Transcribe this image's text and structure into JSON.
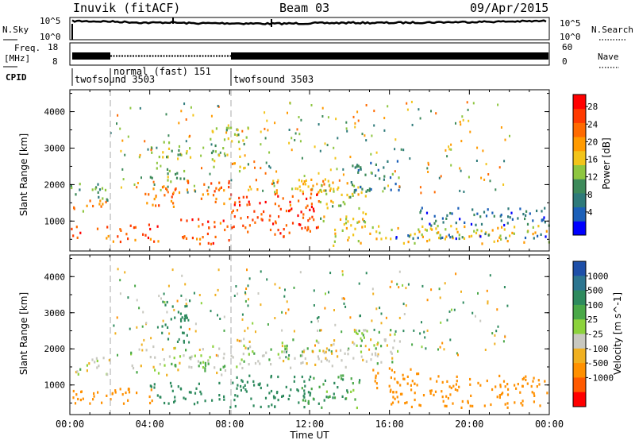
{
  "header": {
    "station": "Inuvik (fitACF)",
    "beam": "Beam 03",
    "date": "09/Apr/2015"
  },
  "nsky_panel": {
    "left_label": "N.Sky",
    "right_label": "N.Search",
    "ticks_left": [
      "10^5",
      "10^0"
    ],
    "ticks_right": [
      "10^5",
      "10^0"
    ]
  },
  "freq_panel": {
    "left_label_1": "Freq.",
    "left_label_2": "[MHz]",
    "right_label": "Nave",
    "ticks_left": [
      "18",
      "8"
    ],
    "ticks_right": [
      "60",
      "0"
    ]
  },
  "cpid": {
    "label": "CPID",
    "segments": [
      {
        "name": "twofsound 3503",
        "start_h": 0,
        "end_h": 2
      },
      {
        "name": "normal (fast) 151",
        "start_h": 2,
        "end_h": 8
      },
      {
        "name": "twofsound 3503",
        "start_h": 8,
        "end_h": 24
      }
    ]
  },
  "x_axis": {
    "label": "Time UT",
    "ticks": [
      "00:00",
      "04:00",
      "08:00",
      "12:00",
      "16:00",
      "20:00",
      "00:00"
    ],
    "range_h": [
      0,
      24
    ]
  },
  "y_axis": {
    "label": "Slant Range [km]",
    "ticks": [
      "1000",
      "2000",
      "3000",
      "4000"
    ],
    "range_km": [
      180,
      4600
    ]
  },
  "power_scale": {
    "label": "Power [dB]",
    "ticks": [
      "4",
      "8",
      "12",
      "16",
      "20",
      "24",
      "28"
    ],
    "colors": [
      "#0000ff",
      "#1b5fb8",
      "#2e7a7a",
      "#3d8a5a",
      "#8ec640",
      "#f2c41a",
      "#ff9a00",
      "#ff6a00",
      "#ff3a00",
      "#ff0000"
    ]
  },
  "velocity_scale": {
    "label": "Velocity [m s^-1]",
    "ticks": [
      "1000",
      "500",
      "100",
      "25",
      "-25",
      "-100",
      "-500",
      "-1000"
    ],
    "colors": [
      "#1e4fa8",
      "#2c7590",
      "#2e8a5e",
      "#4aa848",
      "#8cd23c",
      "#c8c8c0",
      "#f0b020",
      "#ff9000",
      "#ff5a00",
      "#ff0000"
    ]
  },
  "chart_data": [
    {
      "type": "line",
      "title": "N.Sky / N.Search",
      "x": [
        0,
        2,
        4,
        5,
        6,
        8,
        10,
        12,
        14,
        16,
        18,
        20,
        22,
        24
      ],
      "series": [
        {
          "name": "N.Sky",
          "values": [
            4.2,
            4.1,
            3.8,
            3.9,
            3.7,
            3.7,
            3.6,
            3.7,
            3.8,
            3.8,
            3.9,
            4.0,
            4.1,
            4.2
          ]
        }
      ]
    },
    {
      "type": "line",
      "title": "Freq / Nave",
      "x": [
        0,
        2,
        8,
        24
      ],
      "series": [
        {
          "name": "Freq",
          "values": [
            11,
            11,
            11,
            11
          ]
        }
      ]
    },
    {
      "type": "heatmap",
      "title": "Power [dB]",
      "xlabel": "Time UT",
      "ylabel": "Slant Range [km]",
      "xlim": [
        0,
        24
      ],
      "ylim": [
        180,
        4600
      ],
      "blobs": [
        {
          "t0": 0.0,
          "t1": 2.0,
          "r0": 550,
          "r1": 900,
          "p": 26
        },
        {
          "t0": 0.0,
          "t1": 2.0,
          "r0": 1300,
          "r1": 1600,
          "p": 20
        },
        {
          "t0": 0.0,
          "t1": 2.0,
          "r0": 1600,
          "r1": 2100,
          "p": 10
        },
        {
          "t0": 2.0,
          "t1": 4.5,
          "r0": 450,
          "r1": 950,
          "p": 27
        },
        {
          "t0": 3.5,
          "t1": 5.5,
          "r0": 1400,
          "r1": 2000,
          "p": 24
        },
        {
          "t0": 4.0,
          "t1": 6.0,
          "r0": 2100,
          "r1": 3200,
          "p": 14
        },
        {
          "t0": 5.5,
          "t1": 8.0,
          "r0": 400,
          "r1": 1100,
          "p": 27
        },
        {
          "t0": 5.8,
          "t1": 8.0,
          "r0": 1500,
          "r1": 2200,
          "p": 25
        },
        {
          "t0": 7.0,
          "t1": 9.0,
          "r0": 2400,
          "r1": 3600,
          "p": 15
        },
        {
          "t0": 8.0,
          "t1": 12.5,
          "r0": 600,
          "r1": 1800,
          "p": 28
        },
        {
          "t0": 8.5,
          "t1": 13.5,
          "r0": 1800,
          "r1": 2200,
          "p": 20
        },
        {
          "t0": 12.5,
          "t1": 15.0,
          "r0": 900,
          "r1": 2100,
          "p": 16
        },
        {
          "t0": 13.0,
          "t1": 16.0,
          "r0": 350,
          "r1": 900,
          "p": 18
        },
        {
          "t0": 14.0,
          "t1": 16.5,
          "r0": 1800,
          "r1": 2700,
          "p": 8
        },
        {
          "t0": 16.0,
          "t1": 24.0,
          "r0": 400,
          "r1": 900,
          "p": 18
        },
        {
          "t0": 16.0,
          "t1": 24.0,
          "r0": 550,
          "r1": 700,
          "p": 6
        },
        {
          "t0": 17.5,
          "t1": 24.0,
          "r0": 900,
          "r1": 1400,
          "p": 6
        }
      ]
    },
    {
      "type": "heatmap",
      "title": "Velocity [m s^-1]",
      "xlabel": "Time UT",
      "ylabel": "Slant Range [km]",
      "xlim": [
        0,
        24
      ],
      "ylim": [
        180,
        4600
      ],
      "blobs": [
        {
          "t0": 0.0,
          "t1": 2.0,
          "r0": 500,
          "r1": 900,
          "v": -300
        },
        {
          "t0": 0.0,
          "t1": 2.0,
          "r0": 1300,
          "r1": 1800,
          "v": 0
        },
        {
          "t0": 2.0,
          "t1": 4.5,
          "r0": 500,
          "r1": 950,
          "v": -200
        },
        {
          "t0": 3.0,
          "t1": 8.0,
          "r0": 1300,
          "r1": 2100,
          "v": 5
        },
        {
          "t0": 4.0,
          "t1": 8.0,
          "r0": 500,
          "r1": 1100,
          "v": 150
        },
        {
          "t0": 4.5,
          "t1": 6.0,
          "r0": 2200,
          "r1": 3400,
          "v": 150
        },
        {
          "t0": 8.0,
          "t1": 12.0,
          "r0": 400,
          "r1": 1300,
          "v": 200
        },
        {
          "t0": 8.0,
          "t1": 14.0,
          "r0": 1500,
          "r1": 2300,
          "v": 0
        },
        {
          "t0": 11.5,
          "t1": 14.5,
          "r0": 400,
          "r1": 1300,
          "v": 60
        },
        {
          "t0": 14.0,
          "t1": 16.5,
          "r0": 1600,
          "r1": 2600,
          "v": 0
        },
        {
          "t0": 15.0,
          "t1": 17.5,
          "r0": 800,
          "r1": 1500,
          "v": -300
        },
        {
          "t0": 16.0,
          "t1": 24.0,
          "r0": 400,
          "r1": 900,
          "v": -400
        },
        {
          "t0": 18.0,
          "t1": 24.0,
          "r0": 900,
          "r1": 1300,
          "v": -200
        }
      ]
    }
  ]
}
